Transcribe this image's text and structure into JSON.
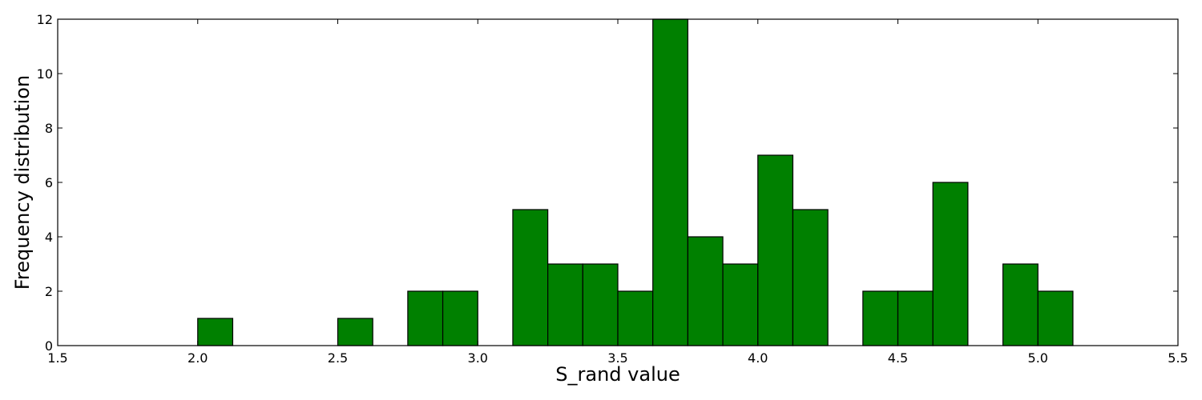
{
  "chart_data": {
    "type": "bar",
    "title": "",
    "xlabel": "S_rand value",
    "ylabel": "Frequency distribution",
    "xlim": [
      1.5,
      5.5
    ],
    "ylim": [
      0,
      12
    ],
    "xticks": [
      "1.5",
      "2.0",
      "2.5",
      "3.0",
      "3.5",
      "4.0",
      "4.5",
      "5.0",
      "5.5"
    ],
    "yticks": [
      "0",
      "2",
      "4",
      "6",
      "8",
      "10",
      "12"
    ],
    "bin_width": 0.125,
    "bars": [
      {
        "x0": 2.0,
        "value": 1
      },
      {
        "x0": 2.5,
        "value": 1
      },
      {
        "x0": 2.75,
        "value": 2
      },
      {
        "x0": 2.875,
        "value": 2
      },
      {
        "x0": 3.125,
        "value": 5
      },
      {
        "x0": 3.25,
        "value": 3
      },
      {
        "x0": 3.375,
        "value": 3
      },
      {
        "x0": 3.5,
        "value": 2
      },
      {
        "x0": 3.625,
        "value": 12
      },
      {
        "x0": 3.75,
        "value": 4
      },
      {
        "x0": 3.875,
        "value": 3
      },
      {
        "x0": 4.0,
        "value": 7
      },
      {
        "x0": 4.125,
        "value": 5
      },
      {
        "x0": 4.375,
        "value": 2
      },
      {
        "x0": 4.5,
        "value": 2
      },
      {
        "x0": 4.625,
        "value": 6
      },
      {
        "x0": 4.875,
        "value": 3
      },
      {
        "x0": 5.0,
        "value": 2
      }
    ],
    "bar_color": "#008000",
    "grid": false,
    "legend": "none"
  }
}
